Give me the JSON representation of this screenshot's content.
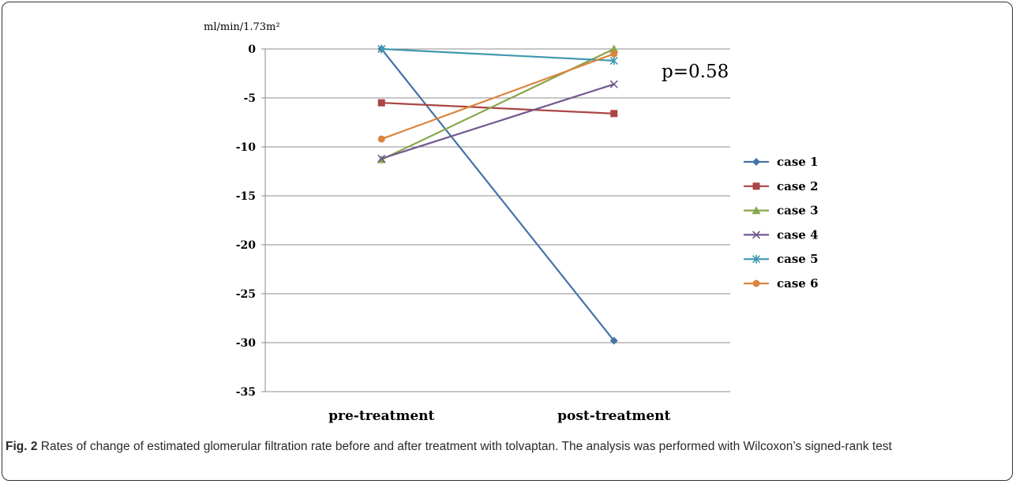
{
  "chart_data": {
    "type": "line",
    "unit_label": "ml/min/1.73m²",
    "categories": [
      "pre-treatment",
      "post-treatment"
    ],
    "ylim": [
      -35,
      0
    ],
    "yticks": [
      "0",
      "-5",
      "-10",
      "-15",
      "-20",
      "-25",
      "-30",
      "-35"
    ],
    "grid": true,
    "legend_position": "right",
    "annotation": "p=0.58",
    "series": [
      {
        "name": "case 1",
        "values": [
          0,
          -29.8
        ],
        "color": "#4572a7",
        "marker": "diamond"
      },
      {
        "name": "case 2",
        "values": [
          -5.5,
          -6.6
        ],
        "color": "#aa4643",
        "marker": "square"
      },
      {
        "name": "case 3",
        "values": [
          -11.3,
          0
        ],
        "color": "#89a54e",
        "marker": "triangle"
      },
      {
        "name": "case 4",
        "values": [
          -11.2,
          -3.6
        ],
        "color": "#71588f",
        "marker": "x"
      },
      {
        "name": "case 5",
        "values": [
          0,
          -1.2
        ],
        "color": "#4198af",
        "marker": "star"
      },
      {
        "name": "case 6",
        "values": [
          -9.2,
          -0.5
        ],
        "color": "#db843d",
        "marker": "circle"
      }
    ]
  },
  "caption": {
    "label": "Fig. 2",
    "text": " Rates of change of estimated glomerular filtration rate before and after treatment with tolvaptan. The analysis was performed with Wilcoxon’s signed-rank test"
  }
}
